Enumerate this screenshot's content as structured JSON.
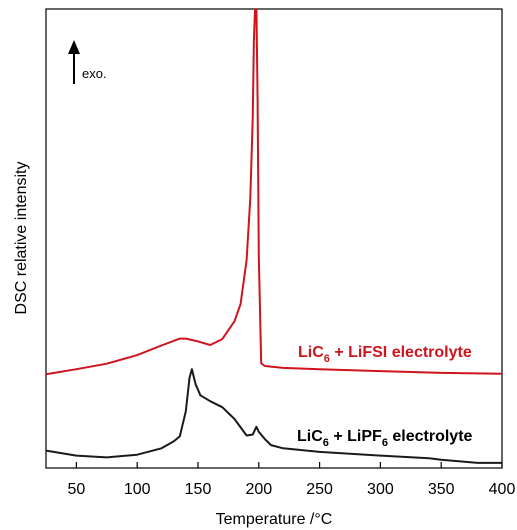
{
  "chart_data": {
    "type": "line",
    "xlabel": "Temperature /°C",
    "ylabel": "DSC relative intensity",
    "xlim": [
      25,
      400
    ],
    "ylim": [
      0,
      100
    ],
    "x_ticks": [
      "50",
      "100",
      "150",
      "200",
      "250",
      "300",
      "350",
      "400"
    ],
    "y_ticks_shown": false,
    "annotation": {
      "arrow": "up",
      "text": "exo."
    },
    "series": [
      {
        "label_parts": [
          "LiC",
          "6",
          " + LiFSI electrolyte"
        ],
        "color": "#d0141e",
        "x": [
          25,
          50,
          75,
          100,
          120,
          135,
          140,
          150,
          160,
          170,
          180,
          185,
          190,
          193,
          195,
          196,
          197,
          198,
          199,
          200,
          202,
          205,
          220,
          250,
          300,
          350,
          400
        ],
        "y": [
          19.2,
          20.3,
          21.5,
          23.4,
          25.5,
          27.0,
          27.0,
          26.4,
          25.6,
          26.9,
          30.8,
          34.6,
          44.2,
          57.7,
          75.0,
          92.3,
          100,
          100,
          79.0,
          45.0,
          21.6,
          21.0,
          20.6,
          20.3,
          19.9,
          19.5,
          19.3
        ]
      },
      {
        "label_parts": [
          "LiC",
          "6",
          " + LiPF",
          "6",
          " electrolyte"
        ],
        "color": "#1a1a1a",
        "x": [
          25,
          50,
          75,
          100,
          120,
          130,
          135,
          140,
          143,
          145,
          148,
          152,
          160,
          170,
          180,
          190,
          195,
          198,
          200,
          205,
          210,
          220,
          250,
          300,
          340,
          350,
          380,
          400
        ],
        "y": [
          2.5,
          1.4,
          1.0,
          1.6,
          3.0,
          4.5,
          5.6,
          11.1,
          18.4,
          20.3,
          17.0,
          14.6,
          13.3,
          12.0,
          9.4,
          5.8,
          6.0,
          7.7,
          6.6,
          5.0,
          3.7,
          3.0,
          2.2,
          1.4,
          0.8,
          0.5,
          -0.2,
          -0.2
        ]
      }
    ]
  }
}
